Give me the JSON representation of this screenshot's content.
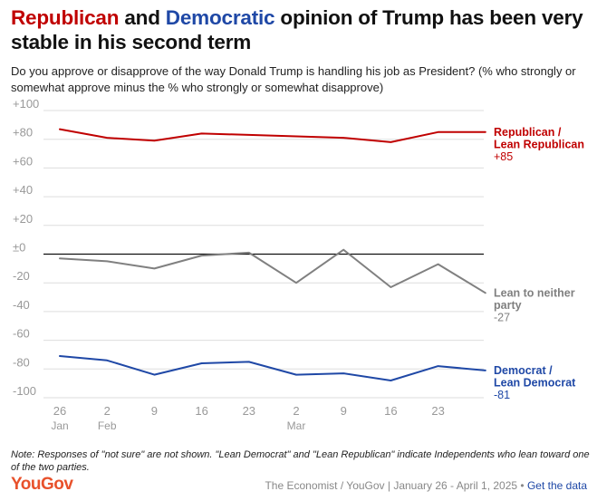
{
  "title": {
    "part1": "Republican",
    "part2": " and ",
    "part3": "Democratic",
    "part4": " opinion of Trump has been very stable in his second term"
  },
  "subtitle": "Do you approve or disapprove of the way Donald Trump is handling his job as President? (% who strongly or somewhat approve minus the % who strongly or somewhat disapprove)",
  "note": "Note: Responses of \"not sure\" are not shown. \"Lean Democrat\" and \"Lean Republican\" indicate Independents who lean toward one of the two parties.",
  "footer": {
    "logo": "YouGov",
    "source": "The Economist / YouGov | January 26 - April 1, 2025 • ",
    "link": "Get the data"
  },
  "colors": {
    "republican": "#c00000",
    "democrat": "#1f48a6",
    "neither": "#808080",
    "grid": "#dddddd",
    "zero_line": "#111111"
  },
  "chart_data": {
    "type": "line",
    "ylim": [
      -100,
      100
    ],
    "y_ticks": [
      100,
      80,
      60,
      40,
      20,
      0,
      -20,
      -40,
      -60,
      -80,
      -100
    ],
    "y_tick_labels": [
      "+100",
      "+80",
      "+60",
      "+40",
      "+20",
      "±0",
      "-20",
      "-40",
      "-60",
      "-80",
      "-100"
    ],
    "x": [
      "2025-01-26",
      "2025-02-02",
      "2025-02-09",
      "2025-02-16",
      "2025-02-23",
      "2025-03-02",
      "2025-03-09",
      "2025-03-16",
      "2025-03-23",
      "2025-03-30"
    ],
    "x_ticks": [
      {
        "date": "2025-01-26",
        "day": "26",
        "month": "Jan"
      },
      {
        "date": "2025-02-02",
        "day": "2",
        "month": "Feb"
      },
      {
        "date": "2025-02-09",
        "day": "9",
        "month": ""
      },
      {
        "date": "2025-02-16",
        "day": "16",
        "month": ""
      },
      {
        "date": "2025-02-23",
        "day": "23",
        "month": ""
      },
      {
        "date": "2025-03-02",
        "day": "2",
        "month": "Mar"
      },
      {
        "date": "2025-03-09",
        "day": "9",
        "month": ""
      },
      {
        "date": "2025-03-16",
        "day": "16",
        "month": ""
      },
      {
        "date": "2025-03-23",
        "day": "23",
        "month": ""
      }
    ],
    "series": [
      {
        "name": "Republican / Lean Republican",
        "label_lines": [
          "Republican /",
          "Lean Republican"
        ],
        "end_label": "+85",
        "color_key": "republican",
        "values": [
          87,
          81,
          79,
          84,
          83,
          82,
          81,
          78,
          85,
          85
        ]
      },
      {
        "name": "Lean to neither party",
        "label_lines": [
          "Lean to neither",
          "party"
        ],
        "end_label": "-27",
        "color_key": "neither",
        "values": [
          -3,
          -5,
          -10,
          -1,
          1,
          -20,
          3,
          -23,
          -7,
          -27
        ]
      },
      {
        "name": "Democrat / Lean Democrat",
        "label_lines": [
          "Democrat /",
          "Lean Democrat"
        ],
        "end_label": "-81",
        "color_key": "democrat",
        "values": [
          -71,
          -74,
          -84,
          -76,
          -75,
          -84,
          -83,
          -88,
          -78,
          -81
        ]
      }
    ]
  }
}
